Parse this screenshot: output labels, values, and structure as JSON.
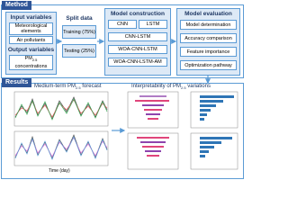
{
  "method": {
    "title": "Method",
    "input": {
      "title": "Input variables",
      "items": [
        "Meteorological elements",
        "Air pollutants"
      ]
    },
    "output": {
      "title": "Output variables",
      "prefix": "PM",
      "sub": "2.5",
      "suffix": " concentrations"
    },
    "split": {
      "title": "Split data",
      "items": [
        "Training (75%)",
        "Testing (25%)"
      ]
    },
    "construction": {
      "title": "Model construction",
      "models": [
        "CNN",
        "LSTM",
        "CNN-LSTM",
        "WOA-CNN-LSTM",
        "WOA-CNN-LSTM-AM"
      ]
    },
    "evaluation": {
      "title": "Model evaluation",
      "items": [
        "Model determination",
        "Accuracy comparison",
        "Feature importance",
        "Optimization pathway"
      ]
    }
  },
  "results": {
    "title": "Results",
    "forecast": {
      "prefix": "Medium-term PM",
      "sub": "2.5",
      "suffix": " forecast",
      "xlabel": "Time (day)"
    },
    "interpretability": {
      "prefix": "Interpretability of PM",
      "sub": "2.5",
      "suffix": " variations"
    }
  }
}
